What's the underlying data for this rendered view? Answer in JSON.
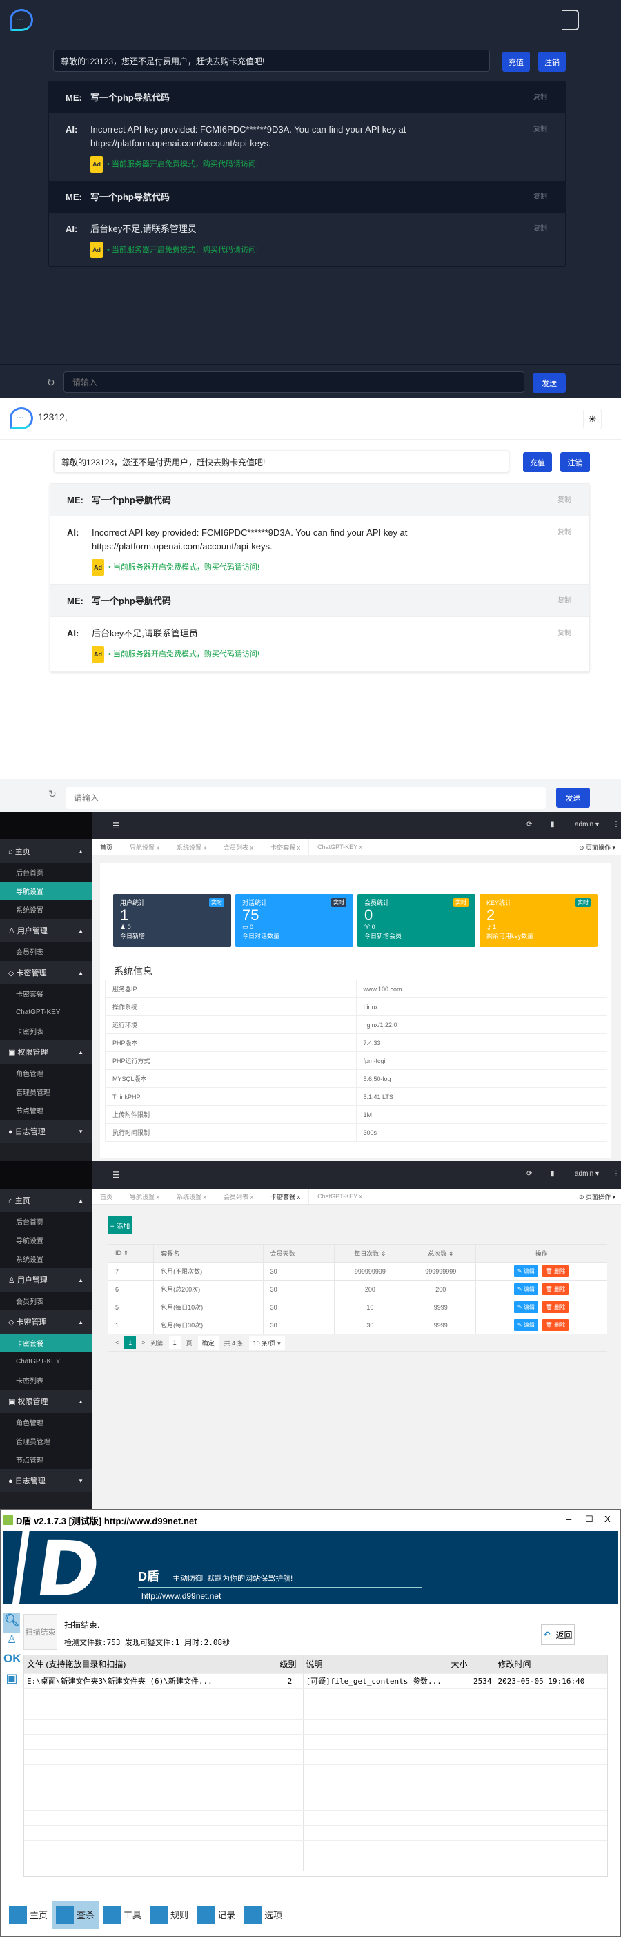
{
  "dark_chat": {
    "notice": "尊敬的123123，您还不是付费用户，赶快去购卡充值吧!",
    "recharge": "充值",
    "logout": "注销",
    "messages": [
      {
        "who": "ME:",
        "text": "写一个php导航代码",
        "copy": "复制"
      },
      {
        "who": "AI:",
        "text": "Incorrect API key provided: FCMI6PDC******9D3A. You can find your API key at https://platform.openai.com/account/api-keys.",
        "ad_label": "Ad",
        "ad": "• 当前服务器开启免费模式，购买代码请访问!",
        "copy": "复制"
      },
      {
        "who": "ME:",
        "text": "写一个php导航代码",
        "copy": "复制"
      },
      {
        "who": "AI:",
        "text": "后台key不足,请联系管理员",
        "ad_label": "Ad",
        "ad": "• 当前服务器开启免费模式，购买代码请访问!",
        "copy": "复制"
      }
    ],
    "input_placeholder": "请输入",
    "send": "发送",
    "theme_icon": "moon-icon"
  },
  "light_chat": {
    "logo_text": "12312,",
    "notice": "尊敬的123123，您还不是付费用户，赶快去购卡充值吧!",
    "recharge": "充值",
    "logout": "注销",
    "messages": [
      {
        "who": "ME:",
        "text": "写一个php导航代码",
        "copy": "复制"
      },
      {
        "who": "AI:",
        "text": "Incorrect API key provided: FCMI6PDC******9D3A. You can find your API key at https://platform.openai.com/account/api-keys.",
        "ad_label": "Ad",
        "ad": "• 当前服务器开启免费模式，购买代码请访问!",
        "copy": "复制"
      },
      {
        "who": "ME:",
        "text": "写一个php导航代码",
        "copy": "复制"
      },
      {
        "who": "AI:",
        "text": "后台key不足,请联系管理员",
        "ad_label": "Ad",
        "ad": "• 当前服务器开启免费模式，购买代码请访问!",
        "copy": "复制"
      }
    ],
    "input_placeholder": "请输入",
    "send": "发送",
    "theme_icon": "sun-icon"
  },
  "admin": {
    "user": "admin ▾",
    "page_ops": "⊙ 页面操作 ▾",
    "sidebar": [
      {
        "type": "grp",
        "label": "⌂ 主页",
        "arrow": "▲"
      },
      {
        "type": "it",
        "label": "后台首页"
      },
      {
        "type": "it",
        "label": "导航设置"
      },
      {
        "type": "it",
        "label": "系统设置"
      },
      {
        "type": "grp",
        "label": "♙ 用户管理",
        "arrow": "▲"
      },
      {
        "type": "it",
        "label": "会员列表"
      },
      {
        "type": "grp",
        "label": "◇ 卡密管理",
        "arrow": "▲"
      },
      {
        "type": "it",
        "label": "卡密套餐"
      },
      {
        "type": "it",
        "label": "ChatGPT-KEY"
      },
      {
        "type": "it",
        "label": "卡密列表"
      },
      {
        "type": "grp",
        "label": "▣ 权限管理",
        "arrow": "▲"
      },
      {
        "type": "it",
        "label": "角色管理"
      },
      {
        "type": "it",
        "label": "管理员管理"
      },
      {
        "type": "it",
        "label": "节点管理"
      },
      {
        "type": "grp",
        "label": "● 日志管理",
        "arrow": "▼"
      }
    ],
    "tabs": [
      "首页",
      "导航设置 x",
      "系统设置 x",
      "会员列表 x",
      "卡密套餐 x",
      "ChatGPT-KEY x"
    ],
    "dashboard": {
      "active_sidebar": "导航设置",
      "active_tab": "首页",
      "cards": [
        {
          "title": "用户统计",
          "badge": "实时",
          "value": "1",
          "sub_icon": "user-icon",
          "sub": "♟ 0",
          "desc": "今日新增",
          "color": "#2f4056",
          "badge_color": "#1e9fff"
        },
        {
          "title": "对话统计",
          "badge": "实时",
          "value": "75",
          "sub_icon": "chat-icon",
          "sub": "▭ 0",
          "desc": "今日对话数量",
          "color": "#1e9fff",
          "badge_color": "#2f4056"
        },
        {
          "title": "会员统计",
          "badge": "实时",
          "value": "0",
          "sub_icon": "trophy-icon",
          "sub": "♈ 0",
          "desc": "今日新增会员",
          "color": "#009688",
          "badge_color": "#ffb800"
        },
        {
          "title": "KEY统计",
          "badge": "实时",
          "value": "2",
          "sub_icon": "key-icon",
          "sub": "⚷ 1",
          "desc": "剩余可用key数量",
          "color": "#ffb800",
          "badge_color": "#009688"
        }
      ],
      "section_title": "系统信息",
      "info": [
        [
          "服务器IP",
          "www.100.com"
        ],
        [
          "操作系统",
          "Linux"
        ],
        [
          "运行环境",
          "nginx/1.22.0"
        ],
        [
          "PHP版本",
          "7.4.33"
        ],
        [
          "PHP运行方式",
          "fpm-fcgi"
        ],
        [
          "MYSQL版本",
          "5.6.50-log"
        ],
        [
          "ThinkPHP",
          "5.1.41 LTS"
        ],
        [
          "上传附件限制",
          "1M"
        ],
        [
          "执行时间限制",
          "300s"
        ]
      ]
    },
    "packages": {
      "active_sidebar": "卡密套餐",
      "active_tab": "卡密套餐 x",
      "add": "+ 添加",
      "columns": [
        "ID ⇕",
        "套餐名",
        "会员天数",
        "每日次数 ⇕",
        "总次数 ⇕",
        "操作"
      ],
      "rows": [
        [
          "7",
          "包月(不限次数)",
          "30",
          "999999999",
          "999999999"
        ],
        [
          "6",
          "包月(总200次)",
          "30",
          "200",
          "200"
        ],
        [
          "5",
          "包月(每日10次)",
          "30",
          "10",
          "9999"
        ],
        [
          "1",
          "包月(每日30次)",
          "30",
          "30",
          "9999"
        ]
      ],
      "edit": "✎ 编辑",
      "delete": "🗑 删除",
      "pager": {
        "prev": "<",
        "page": "1",
        "next": ">",
        "goto": "到第",
        "page_input": "1",
        "page_unit": "页",
        "confirm": "确定",
        "total": "共 4 条",
        "per_page": "10 条/页 ▾"
      }
    }
  },
  "dshield": {
    "title": "D盾 v2.1.7.3 [测试版] http://www.d99net.net",
    "banner_brand": "D盾",
    "banner_slogan": "主动防御, 默默为你的网站保驾护航!",
    "banner_url": "http://www.d99net.net",
    "scan_button": "扫描结束",
    "status": "扫描结束.",
    "stats": "检测文件数:753 发现可疑文件:1 用时:2.08秒",
    "back": "返回",
    "columns": [
      "文件 (支持拖放目录和扫描)",
      "级别",
      "说明",
      "大小",
      "修改时间"
    ],
    "rows": [
      [
        "E:\\桌面\\新建文件夹3\\新建文件夹 (6)\\新建文件...",
        "2",
        "[可疑]file_get_contents 参数...",
        "2534",
        "2023-05-05 19:16:40"
      ]
    ],
    "side_ok": "OK",
    "toolbar": [
      "主页",
      "查杀",
      "工具",
      "规则",
      "记录",
      "选项"
    ],
    "toolbar_active": "查杀",
    "colors": {
      "banner": "#003d66",
      "accent": "#2b8ac6"
    }
  }
}
